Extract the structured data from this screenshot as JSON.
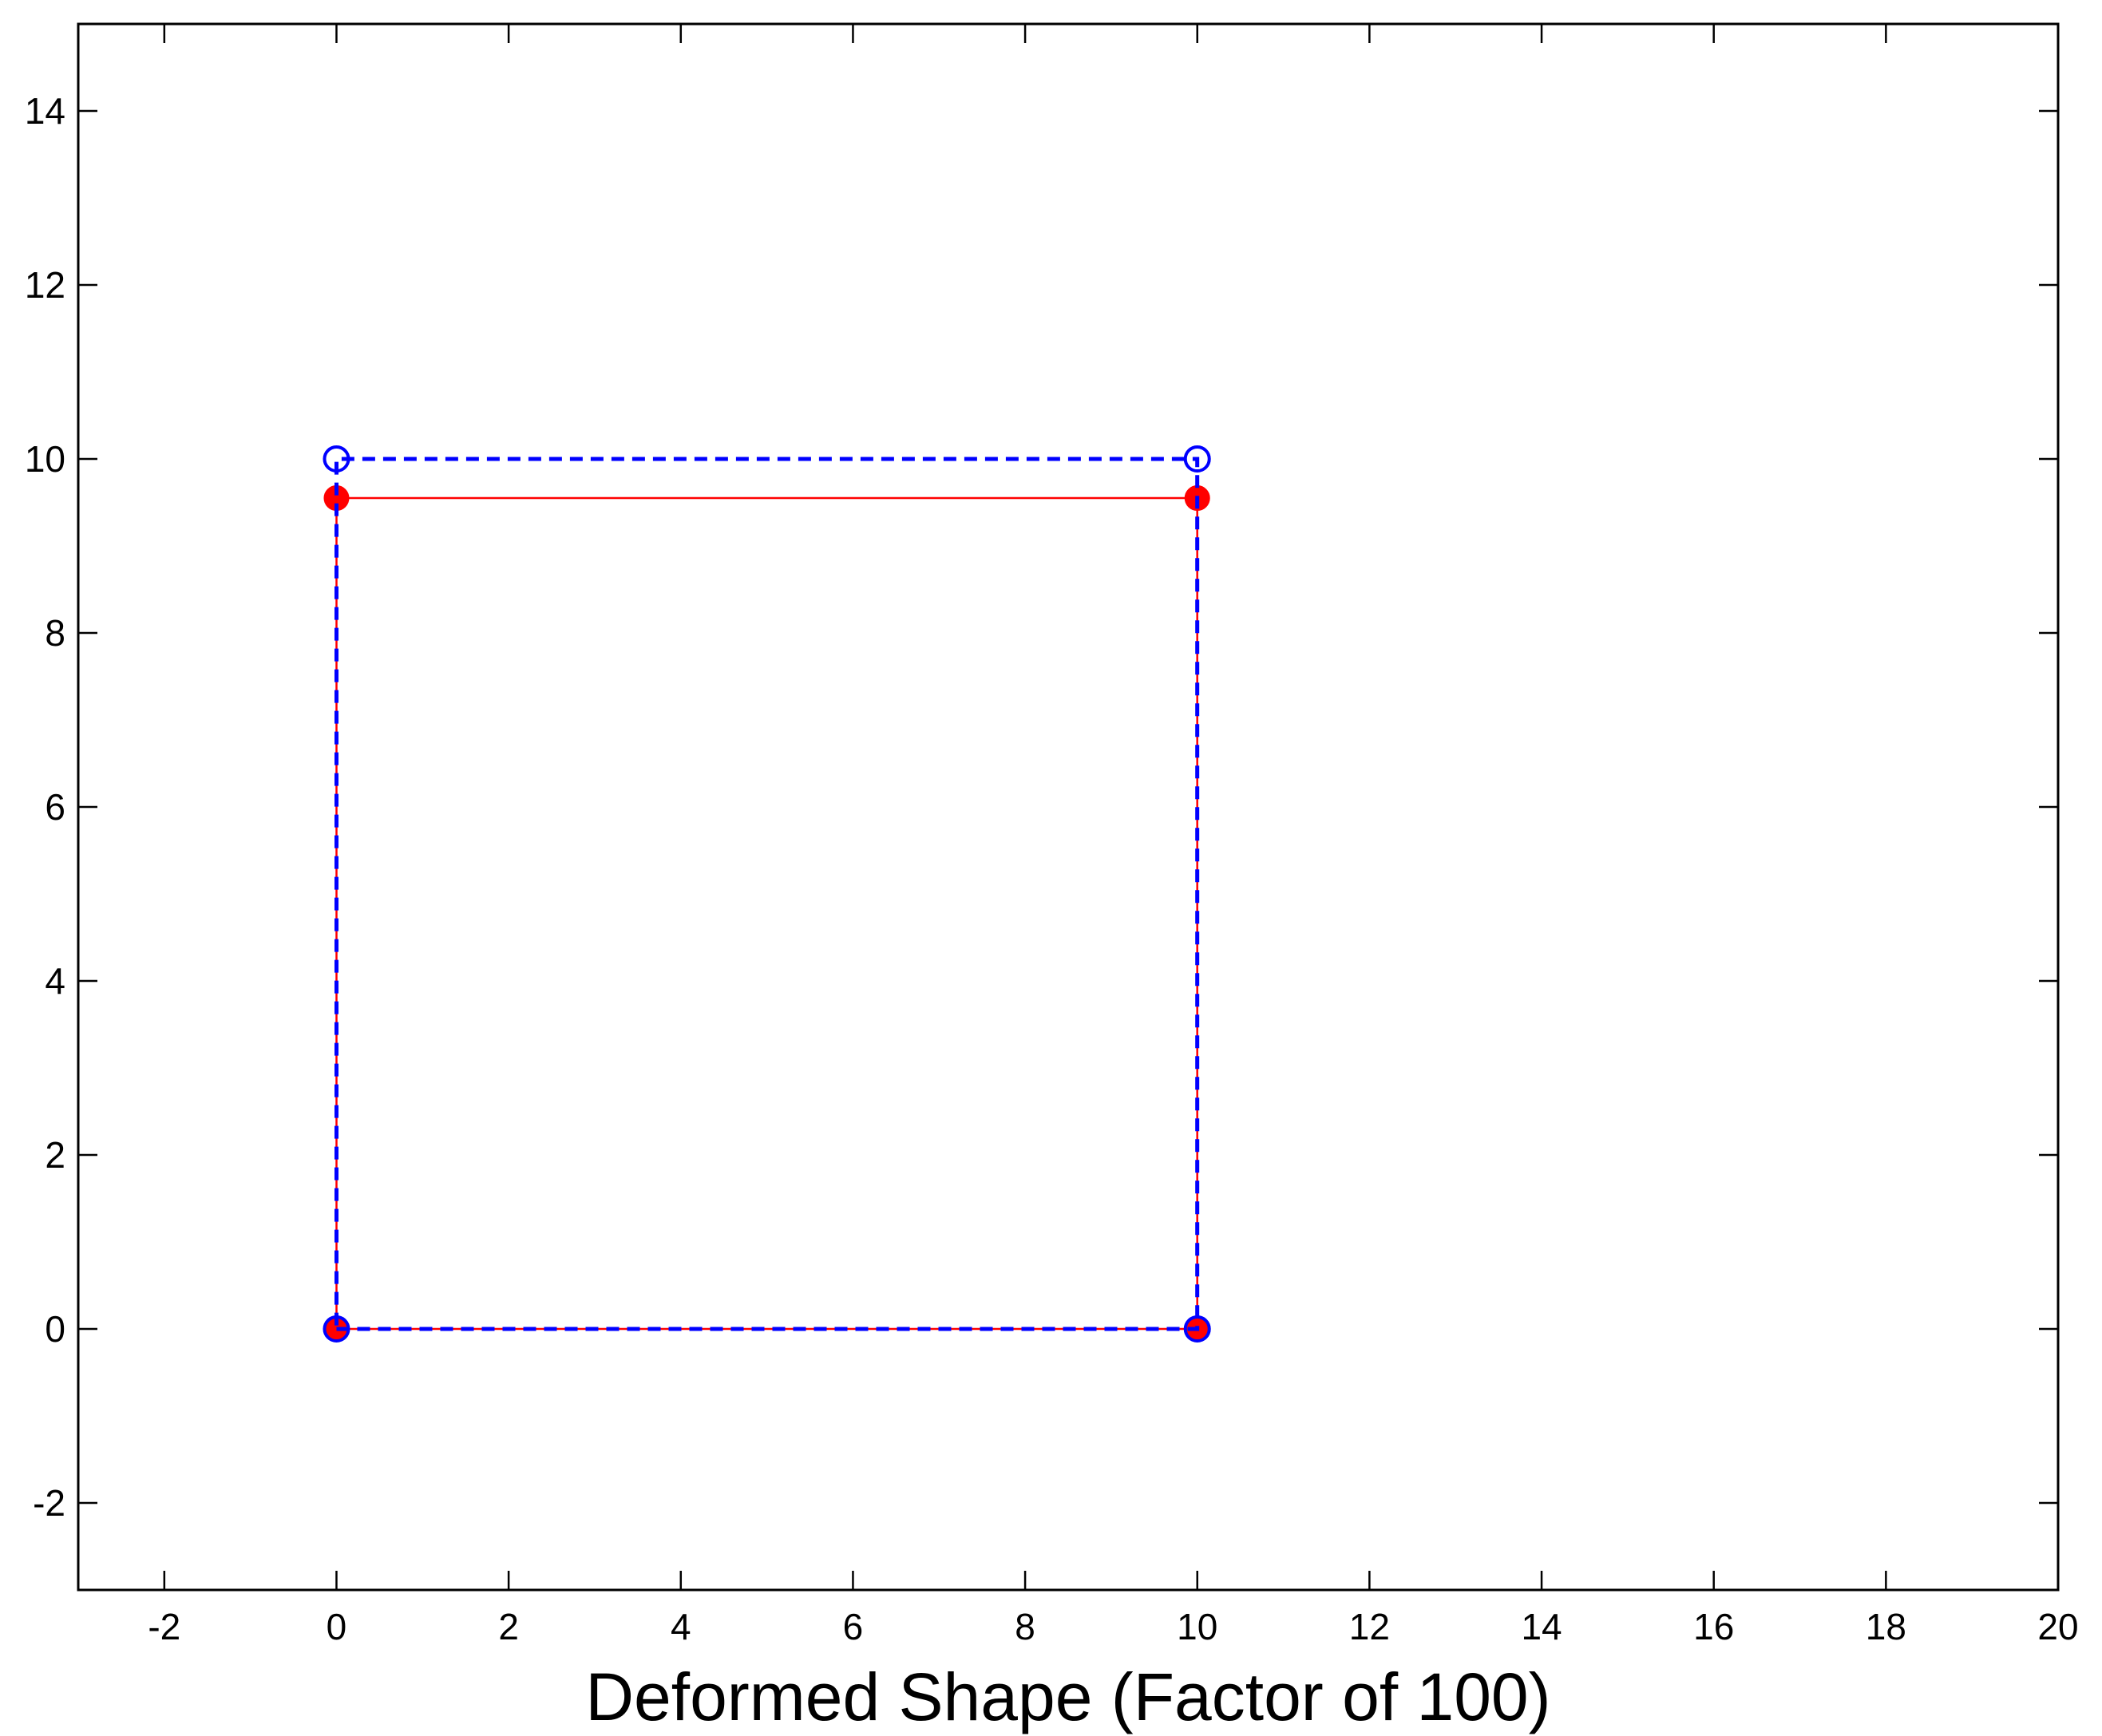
{
  "chart_data": {
    "type": "line",
    "title": "",
    "xlabel": "Deformed Shape (Factor of 100)",
    "ylabel": "",
    "xlim": [
      -3,
      20
    ],
    "ylim": [
      -3,
      15
    ],
    "xticks": [
      -2,
      0,
      2,
      4,
      6,
      8,
      10,
      12,
      14,
      16,
      18,
      20
    ],
    "yticks": [
      -2,
      0,
      2,
      4,
      6,
      8,
      10,
      12,
      14
    ],
    "xtick_labels": [
      "-2",
      "0",
      "2",
      "4",
      "6",
      "8",
      "10",
      "12",
      "14",
      "16",
      "18",
      "20"
    ],
    "ytick_labels": [
      "-2",
      "0",
      "2",
      "4",
      "6",
      "8",
      "10",
      "12",
      "14"
    ],
    "grid": false,
    "series": [
      {
        "style": "solid",
        "color": "#ff0000",
        "marker": "filled-circle",
        "x": [
          0,
          10,
          10,
          0,
          0
        ],
        "y": [
          0,
          0,
          9.55,
          9.55,
          0
        ]
      },
      {
        "style": "dashed",
        "color": "#0000ff",
        "marker": "open-circle",
        "x": [
          0,
          10,
          10,
          0,
          0
        ],
        "y": [
          0,
          0,
          10,
          10,
          0
        ]
      }
    ]
  }
}
